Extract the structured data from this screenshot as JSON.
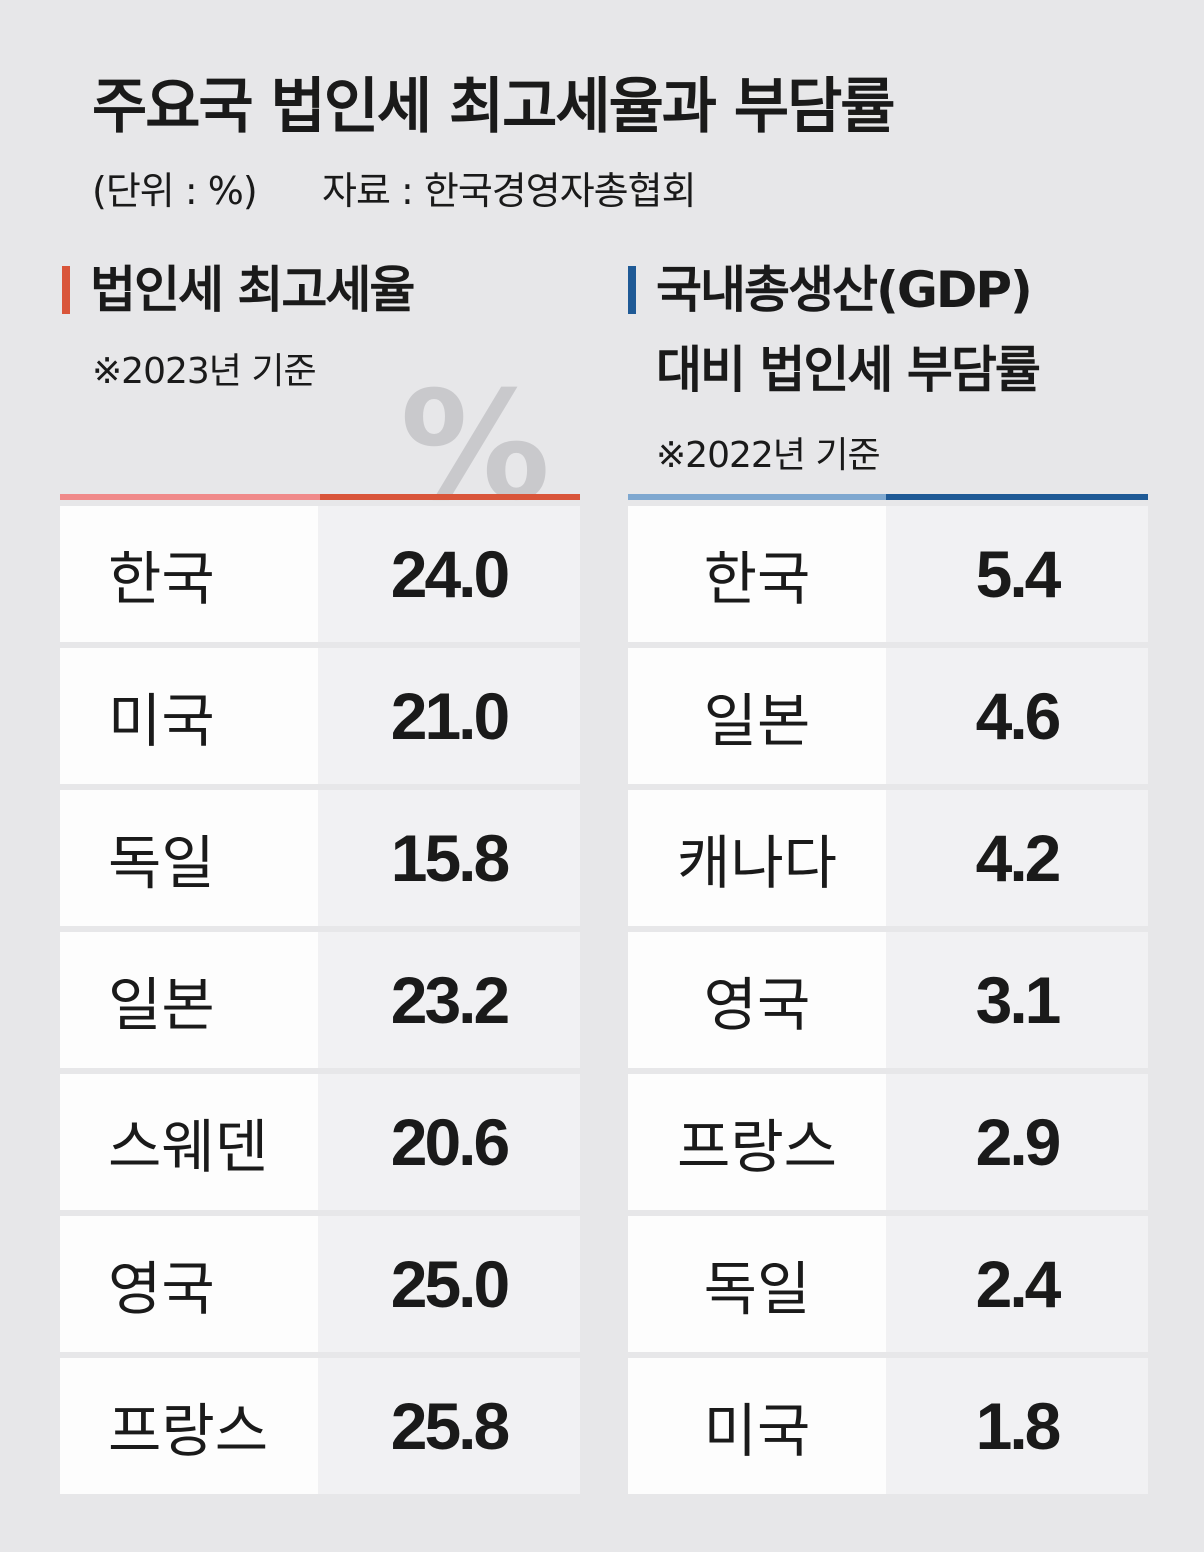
{
  "header": {
    "title": "주요국 법인세 최고세율과 부담률",
    "unit": "(단위 : %)",
    "source": "자료 : 한국경영자총협회"
  },
  "left": {
    "heading": "법인세 최고세율",
    "note": "※2023년 기준",
    "symbol": "%",
    "rows": [
      [
        "한국",
        "24.0"
      ],
      [
        "미국",
        "21.0"
      ],
      [
        "독일",
        "15.8"
      ],
      [
        "일본",
        "23.2"
      ],
      [
        "스웨덴",
        "20.6"
      ],
      [
        "영국",
        "25.0"
      ],
      [
        "프랑스",
        "25.8"
      ]
    ]
  },
  "right": {
    "heading": [
      "국내총생산(GDP)",
      "대비 법인세 부담률"
    ],
    "note": "※2022년 기준",
    "rows": [
      [
        "한국",
        "5.4"
      ],
      [
        "일본",
        "4.6"
      ],
      [
        "캐나다",
        "4.2"
      ],
      [
        "영국",
        "3.1"
      ],
      [
        "프랑스",
        "2.9"
      ],
      [
        "독일",
        "2.4"
      ],
      [
        "미국",
        "1.8"
      ]
    ]
  }
}
